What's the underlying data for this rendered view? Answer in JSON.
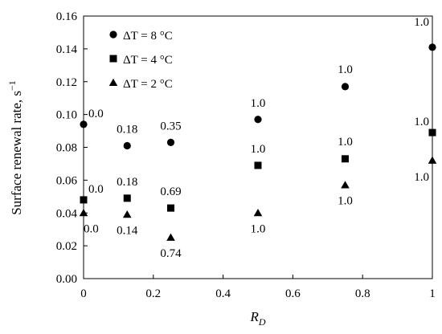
{
  "chart_data": {
    "type": "scatter",
    "xlabel": "R",
    "xlabel_sub": "D",
    "ylabel": "Surface renewal rate, s",
    "ylabel_sup": "−1",
    "xlim": [
      0,
      1
    ],
    "ylim": [
      0,
      0.16
    ],
    "xticks": [
      0,
      0.2,
      0.4,
      0.6,
      0.8,
      1
    ],
    "xtick_labels": [
      "0",
      "0.2",
      "0.4",
      "0.6",
      "0.8",
      "1"
    ],
    "yticks": [
      0,
      0.02,
      0.04,
      0.06,
      0.08,
      0.1,
      0.12,
      0.14,
      0.16
    ],
    "ytick_labels": [
      "0.00",
      "0.02",
      "0.04",
      "0.06",
      "0.08",
      "0.10",
      "0.12",
      "0.14",
      "0.16"
    ],
    "grid": false,
    "legend_position": "top-left",
    "series": [
      {
        "name": "ΔT = 8 °C",
        "marker": "circle",
        "x": [
          0,
          0.125,
          0.25,
          0.5,
          0.75,
          1
        ],
        "y": [
          0.094,
          0.081,
          0.083,
          0.097,
          0.117,
          0.141
        ],
        "labels": [
          "0.0",
          "0.18",
          "0.35",
          "1.0",
          "1.0",
          "1.0"
        ]
      },
      {
        "name": "ΔT = 4 °C",
        "marker": "square",
        "x": [
          0,
          0.125,
          0.25,
          0.5,
          0.75,
          1
        ],
        "y": [
          0.048,
          0.049,
          0.043,
          0.069,
          0.073,
          0.089
        ],
        "labels": [
          "0.0",
          "0.18",
          "0.69",
          "1.0",
          "1.0",
          "1.0"
        ]
      },
      {
        "name": "ΔT = 2 °C",
        "marker": "triangle",
        "x": [
          0,
          0.125,
          0.25,
          0.5,
          0.75,
          1
        ],
        "y": [
          0.04,
          0.039,
          0.025,
          0.04,
          0.057,
          0.072
        ],
        "labels": [
          "0.0",
          "0.14",
          "0.74",
          "1.0",
          "1.0",
          "1.0"
        ]
      }
    ]
  }
}
